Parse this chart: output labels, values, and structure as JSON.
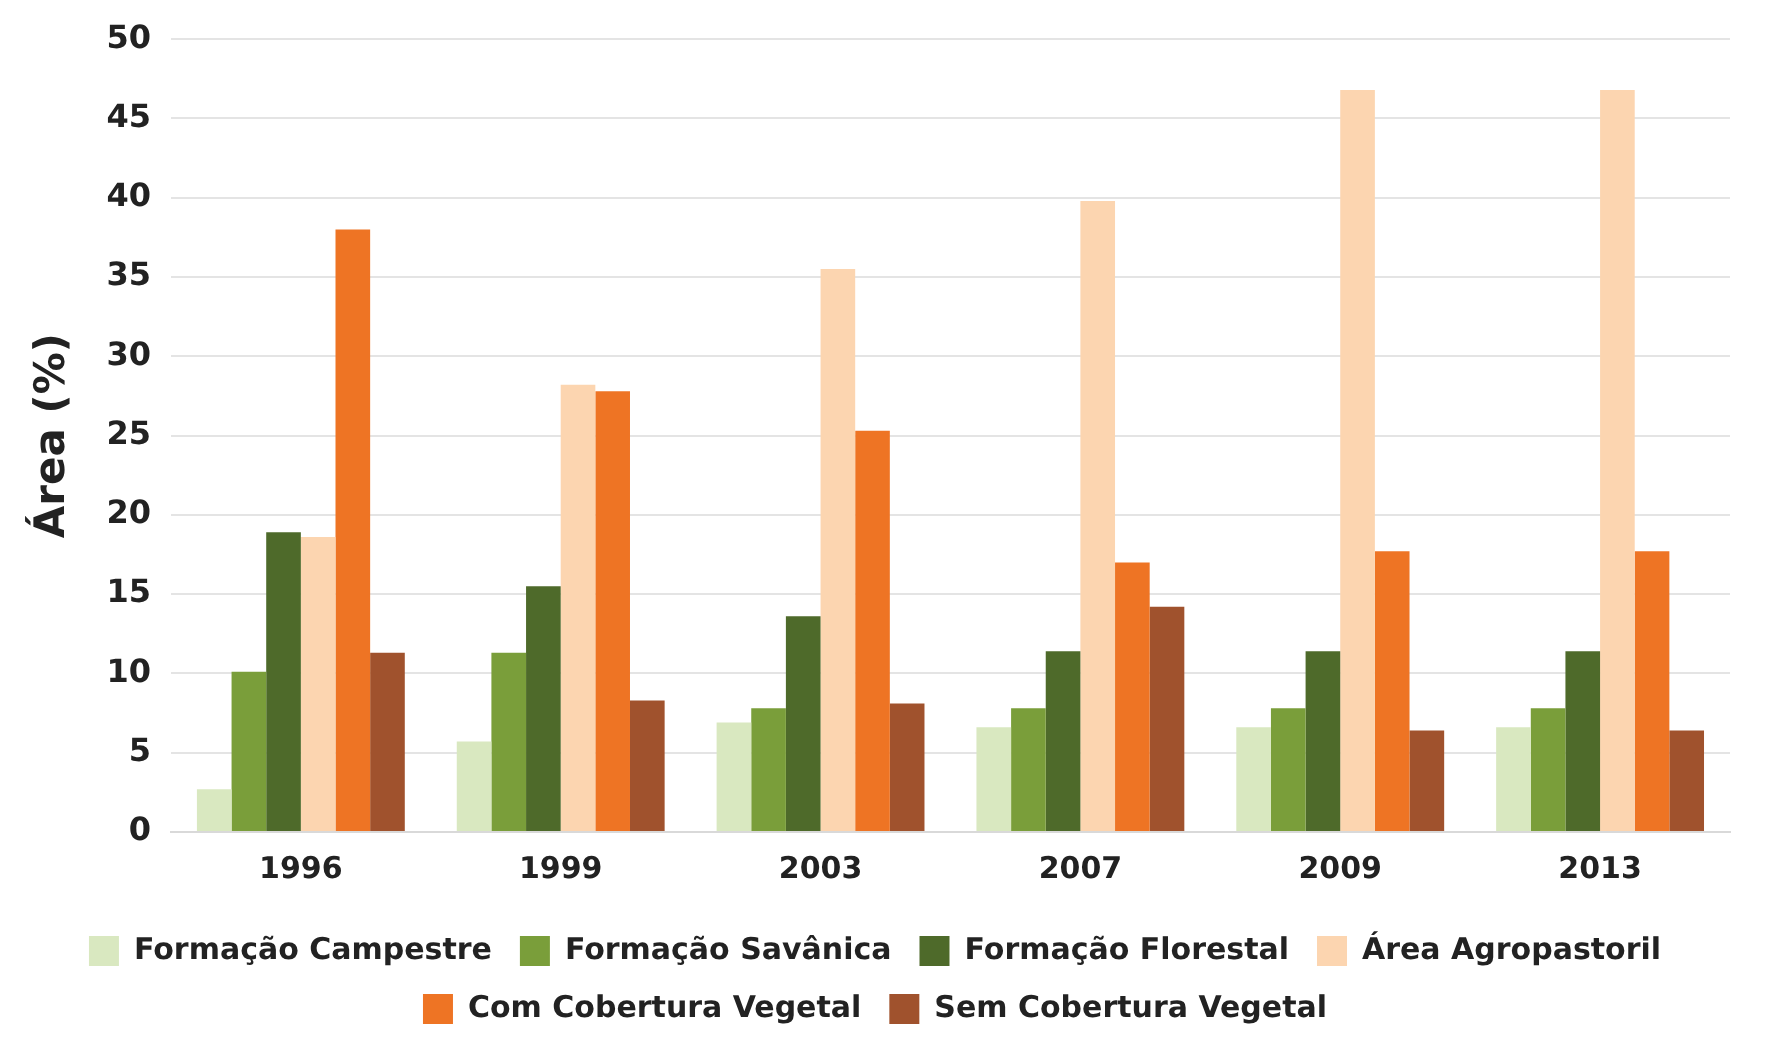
{
  "chart_data": {
    "type": "bar",
    "ylabel": "Área (%)",
    "categories": [
      "1996",
      "1999",
      "2003",
      "2007",
      "2009",
      "2013"
    ],
    "series": [
      {
        "name": "Formação Campestre",
        "color": "#d9e8c0",
        "values": [
          2.7,
          5.7,
          6.9,
          6.6,
          6.6,
          6.6
        ]
      },
      {
        "name": "Formação Savânica",
        "color": "#7a9e3a",
        "values": [
          10.1,
          11.3,
          7.8,
          7.8,
          7.8,
          7.8
        ]
      },
      {
        "name": "Formação Florestal",
        "color": "#4e6a2a",
        "values": [
          18.9,
          15.5,
          13.6,
          11.4,
          11.4,
          11.4
        ]
      },
      {
        "name": "Área Agropastoril",
        "color": "#fcd5b0",
        "values": [
          18.6,
          28.2,
          35.5,
          39.8,
          46.8,
          46.8
        ]
      },
      {
        "name": "Com Cobertura Vegetal",
        "color": "#ee7424",
        "values": [
          38,
          27.8,
          25.3,
          17,
          17.7,
          17.7
        ]
      },
      {
        "name": "Sem Cobertura Vegetal",
        "color": "#a0522d",
        "values": [
          11.3,
          8.3,
          8.1,
          14.2,
          6.4,
          6.4
        ]
      }
    ],
    "ylim": [
      0,
      50
    ],
    "yticks": [
      0,
      5,
      10,
      15,
      20,
      25,
      30,
      35,
      40,
      45,
      50
    ],
    "grid": "y",
    "legend": "bottom"
  }
}
